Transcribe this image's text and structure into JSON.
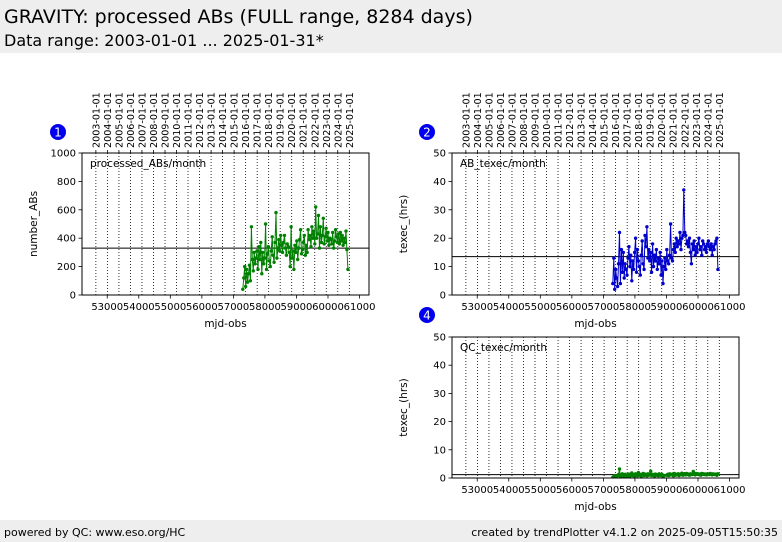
{
  "header": {
    "title": "GRAVITY: processed ABs (FULL range, 8284 days)",
    "subtitle": "Data range: 2003-01-01 ... 2025-01-31*"
  },
  "footer": {
    "left": "powered by QC: www.eso.org/HC",
    "right": "created by trendPlotter v4.1.2 on 2025-09-05T15:50:35"
  },
  "colors": {
    "green": "#008000",
    "blue": "#0000cc",
    "marker": "#0000ee"
  },
  "chart_data": [
    {
      "id": 1,
      "type": "line",
      "label": "processed_ABs/month",
      "ylabel": "number_ABs",
      "xlabel": "mjd-obs",
      "ylim": [
        0,
        1000
      ],
      "yticks": [
        0,
        200,
        400,
        600,
        800,
        1000
      ],
      "xlim": [
        52200,
        61300
      ],
      "xticks": [
        "53000",
        "54000",
        "55000",
        "56000",
        "57000",
        "58000",
        "59000",
        "60000",
        "61000"
      ],
      "date_ticks": [
        "2003-01-01",
        "2004-01-01",
        "2005-01-01",
        "2006-01-01",
        "2007-01-01",
        "2008-01-01",
        "2009-01-01",
        "2010-01-01",
        "2011-01-01",
        "2012-01-01",
        "2013-01-01",
        "2014-01-01",
        "2015-01-01",
        "2016-01-01",
        "2017-01-01",
        "2018-01-01",
        "2019-01-01",
        "2020-01-01",
        "2021-01-01",
        "2022-01-01",
        "2023-01-01",
        "2024-01-01",
        "2025-01-01"
      ],
      "hline": 330,
      "color": "#008000",
      "series": [
        {
          "x": [
            57300,
            57330,
            57360,
            57390,
            57420,
            57450,
            57480,
            57510,
            57540,
            57570,
            57600,
            57630,
            57660,
            57690,
            57720,
            57750,
            57780,
            57810,
            57840,
            57870,
            57900,
            57930,
            57960,
            57990,
            58020,
            58050,
            58080,
            58110,
            58140,
            58170,
            58200,
            58230,
            58260,
            58290,
            58320,
            58350,
            58380,
            58410,
            58440,
            58470,
            58500,
            58530,
            58560,
            58590,
            58620,
            58650,
            58680,
            58710,
            58740,
            58770,
            58800,
            58830,
            58860,
            58890,
            58920,
            58950,
            58980,
            59010,
            59040,
            59070,
            59100,
            59130,
            59160,
            59190,
            59220,
            59250,
            59280,
            59310,
            59340,
            59370,
            59400,
            59430,
            59460,
            59490,
            59520,
            59550,
            59580,
            59610,
            59640,
            59670,
            59700,
            59730,
            59760,
            59790,
            59820,
            59850,
            59880,
            59910,
            59940,
            59970,
            60000,
            60030,
            60060,
            60090,
            60120,
            60150,
            60180,
            60210,
            60240,
            60270,
            60300,
            60330,
            60360,
            60390,
            60420,
            60450,
            60480,
            60510,
            60540,
            60570,
            60600,
            60630
          ],
          "y": [
            40,
            120,
            200,
            60,
            180,
            90,
            150,
            210,
            100,
            480,
            250,
            170,
            300,
            220,
            260,
            310,
            180,
            340,
            250,
            370,
            150,
            300,
            220,
            260,
            500,
            180,
            290,
            340,
            240,
            200,
            310,
            410,
            280,
            230,
            370,
            580,
            260,
            330,
            390,
            310,
            420,
            350,
            300,
            370,
            420,
            330,
            280,
            360,
            340,
            300,
            200,
            480,
            260,
            310,
            180,
            350,
            300,
            380,
            250,
            330,
            390,
            460,
            290,
            320,
            370,
            420,
            280,
            350,
            300,
            460,
            390,
            420,
            340,
            480,
            400,
            450,
            360,
            620,
            400,
            430,
            560,
            330,
            480,
            370,
            420,
            540,
            360,
            410,
            470,
            380,
            440,
            350,
            400,
            390,
            360,
            440,
            330,
            380,
            460,
            410,
            370,
            430,
            360,
            440,
            380,
            420,
            350,
            400,
            370,
            450,
            320,
            180
          ]
        }
      ]
    },
    {
      "id": 2,
      "type": "line",
      "label": "AB_texec/month",
      "ylabel": "texec_(hrs)",
      "xlabel": "mjd-obs",
      "ylim": [
        0,
        50
      ],
      "yticks": [
        0,
        10,
        20,
        30,
        40,
        50
      ],
      "xlim": [
        52200,
        61300
      ],
      "xticks": [
        "53000",
        "54000",
        "55000",
        "56000",
        "57000",
        "58000",
        "59000",
        "60000",
        "61000"
      ],
      "date_ticks": [
        "2003-01-01",
        "2004-01-01",
        "2005-01-01",
        "2006-01-01",
        "2007-01-01",
        "2008-01-01",
        "2009-01-01",
        "2010-01-01",
        "2011-01-01",
        "2012-01-01",
        "2013-01-01",
        "2014-01-01",
        "2015-01-01",
        "2016-01-01",
        "2017-01-01",
        "2018-01-01",
        "2019-01-01",
        "2020-01-01",
        "2021-01-01",
        "2022-01-01",
        "2023-01-01",
        "2024-01-01",
        "2025-01-01"
      ],
      "hline": 13.5,
      "color": "#0000cc",
      "series": [
        {
          "x": [
            57300,
            57330,
            57360,
            57390,
            57420,
            57450,
            57480,
            57510,
            57540,
            57570,
            57600,
            57630,
            57660,
            57690,
            57720,
            57750,
            57780,
            57810,
            57840,
            57870,
            57900,
            57930,
            57960,
            57990,
            58020,
            58050,
            58080,
            58110,
            58140,
            58170,
            58200,
            58230,
            58260,
            58290,
            58320,
            58350,
            58380,
            58410,
            58440,
            58470,
            58500,
            58530,
            58560,
            58590,
            58620,
            58650,
            58680,
            58710,
            58740,
            58770,
            58800,
            58830,
            58860,
            58890,
            58920,
            58950,
            58980,
            59010,
            59040,
            59070,
            59100,
            59130,
            59160,
            59190,
            59220,
            59250,
            59280,
            59310,
            59340,
            59370,
            59400,
            59430,
            59460,
            59490,
            59520,
            59550,
            59580,
            59610,
            59640,
            59670,
            59700,
            59730,
            59760,
            59790,
            59820,
            59850,
            59880,
            59910,
            59940,
            59970,
            60000,
            60030,
            60060,
            60090,
            60120,
            60150,
            60180,
            60210,
            60240,
            60270,
            60300,
            60330,
            60360,
            60390,
            60420,
            60450,
            60480,
            60510,
            60540,
            60570,
            60600,
            60630
          ],
          "y": [
            4,
            13,
            2,
            9,
            6,
            3,
            11,
            22,
            4,
            16,
            8,
            15,
            6,
            11,
            9,
            7,
            13,
            17,
            10,
            14,
            5,
            12,
            9,
            15,
            20,
            8,
            16,
            12,
            10,
            7,
            14,
            19,
            11,
            9,
            21,
            17,
            24,
            13,
            16,
            12,
            15,
            8,
            18,
            10,
            14,
            12,
            16,
            9,
            13,
            11,
            15,
            7,
            12,
            4,
            10,
            13,
            9,
            16,
            12,
            11,
            14,
            25,
            13,
            12,
            16,
            18,
            15,
            20,
            17,
            19,
            18,
            22,
            16,
            20,
            21,
            37,
            22,
            21,
            18,
            19,
            17,
            20,
            15,
            11,
            18,
            16,
            19,
            14,
            17,
            15,
            18,
            20,
            16,
            17,
            14,
            19,
            18,
            16,
            17,
            15,
            18,
            19,
            17,
            16,
            18,
            14,
            17,
            16,
            18,
            19,
            20,
            9
          ]
        }
      ]
    },
    {
      "id": 4,
      "type": "line",
      "label": "QC_texec/month",
      "ylabel": "texec_(hrs)",
      "xlabel": "mjd-obs",
      "ylim": [
        0,
        50
      ],
      "yticks": [
        0,
        10,
        20,
        30,
        40,
        50
      ],
      "xlim": [
        52200,
        61300
      ],
      "xticks": [
        "53000",
        "54000",
        "55000",
        "56000",
        "57000",
        "58000",
        "59000",
        "60000",
        "61000"
      ],
      "date_ticks": [],
      "hline": 1.2,
      "color": "#008000",
      "series": [
        {
          "x": [
            57300,
            57330,
            57360,
            57390,
            57420,
            57450,
            57480,
            57510,
            57540,
            57570,
            57600,
            57630,
            57660,
            57690,
            57720,
            57750,
            57780,
            57810,
            57840,
            57870,
            57900,
            57930,
            57960,
            57990,
            58020,
            58050,
            58080,
            58110,
            58140,
            58170,
            58200,
            58230,
            58260,
            58290,
            58320,
            58350,
            58380,
            58410,
            58440,
            58470,
            58500,
            58530,
            58560,
            58590,
            58620,
            58650,
            58680,
            58710,
            58740,
            58770,
            58800,
            58830,
            58860,
            58890,
            58920,
            59010,
            59040,
            59070,
            59100,
            59130,
            59160,
            59190,
            59220,
            59250,
            59280,
            59310,
            59340,
            59370,
            59400,
            59430,
            59460,
            59490,
            59520,
            59550,
            59580,
            59610,
            59640,
            59670,
            59700,
            59730,
            59760,
            59790,
            59820,
            59850,
            59880,
            59910,
            59940,
            59970,
            60000,
            60030,
            60060,
            60090,
            60120,
            60150,
            60180,
            60210,
            60240,
            60270,
            60300,
            60330,
            60360,
            60390,
            60420,
            60450,
            60480,
            60510,
            60540,
            60570,
            60600,
            60630
          ],
          "y": [
            0.2,
            0.5,
            0.8,
            0.3,
            0.6,
            0.9,
            1.2,
            3.2,
            0.4,
            1.0,
            1.5,
            0.7,
            0.9,
            1.3,
            0.5,
            1.1,
            0.8,
            1.4,
            0.6,
            1.0,
            1.8,
            0.9,
            1.2,
            0.7,
            1.5,
            1.1,
            0.8,
            1.9,
            1.0,
            1.3,
            0.6,
            1.2,
            1.6,
            0.9,
            1.4,
            1.1,
            0.8,
            1.5,
            1.0,
            1.2,
            2.4,
            0.9,
            1.3,
            1.1,
            0.7,
            1.4,
            1.0,
            1.2,
            0.8,
            1.5,
            1.1,
            0.9,
            1.3,
            0.6,
            0.8,
            1.0,
            1.3,
            0.9,
            1.5,
            1.1,
            1.2,
            1.4,
            0.8,
            1.6,
            1.0,
            1.3,
            1.1,
            1.5,
            0.9,
            1.4,
            1.2,
            1.7,
            1.0,
            1.5,
            1.3,
            1.1,
            1.6,
            1.2,
            1.4,
            1.0,
            1.5,
            1.3,
            1.2,
            2.3,
            1.4,
            1.1,
            1.6,
            1.3,
            1.5,
            1.2,
            1.4,
            1.0,
            1.6,
            1.3,
            1.5,
            1.2,
            1.4,
            1.1,
            1.5,
            1.3,
            1.2,
            1.6,
            1.4,
            1.1,
            1.5,
            1.3,
            1.2,
            1.4,
            1.0,
            1.5
          ]
        }
      ]
    }
  ]
}
